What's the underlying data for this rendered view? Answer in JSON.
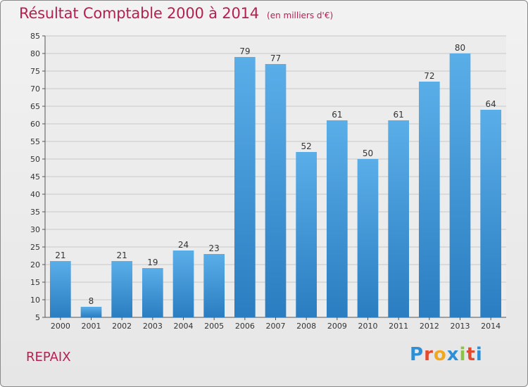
{
  "title": "Résultat Comptable 2000 à 2014",
  "subtitle": "(en milliers d'€)",
  "commune": "REPAIX",
  "logo": {
    "text": "Proxiti",
    "letters": [
      {
        "ch": "P",
        "color": "#2e8fd6"
      },
      {
        "ch": "r",
        "color": "#e64a2e"
      },
      {
        "ch": "o",
        "color": "#f2a81d"
      },
      {
        "ch": "x",
        "color": "#2e8fd6"
      },
      {
        "ch": "i",
        "color": "#8bc34a"
      },
      {
        "ch": "t",
        "color": "#e64a2e"
      },
      {
        "ch": "i",
        "color": "#2e8fd6"
      }
    ]
  },
  "colors": {
    "bar_top": "#5aaee8",
    "bar_bottom": "#2a7dc0",
    "grid": "#c8c8c8",
    "title": "#b5214f"
  },
  "chart_data": {
    "type": "bar",
    "categories": [
      "2000",
      "2001",
      "2002",
      "2003",
      "2004",
      "2005",
      "2006",
      "2007",
      "2008",
      "2009",
      "2010",
      "2011",
      "2012",
      "2013",
      "2014"
    ],
    "values": [
      21,
      8,
      21,
      19,
      24,
      23,
      79,
      77,
      52,
      61,
      50,
      61,
      72,
      80,
      64
    ],
    "ylim": [
      5,
      85
    ],
    "yticks": [
      5,
      10,
      15,
      20,
      25,
      30,
      35,
      40,
      45,
      50,
      55,
      60,
      65,
      70,
      75,
      80,
      85
    ],
    "grid": true,
    "xlabel": "",
    "ylabel": ""
  }
}
